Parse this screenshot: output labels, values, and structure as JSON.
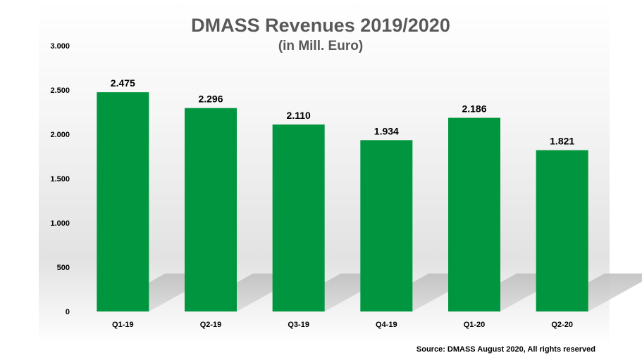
{
  "chart_data": {
    "type": "bar",
    "title": "DMASS Revenues 2019/2020",
    "subtitle": "(in Mill. Euro)",
    "categories": [
      "Q1-19",
      "Q2-19",
      "Q3-19",
      "Q4-19",
      "Q1-20",
      "Q2-20"
    ],
    "values": [
      2475,
      2296,
      2110,
      1934,
      2186,
      1821
    ],
    "value_labels": [
      "2.475",
      "2.296",
      "2.110",
      "1.934",
      "2.186",
      "1.821"
    ],
    "yticks": [
      0,
      500,
      1000,
      1500,
      2000,
      2500,
      3000
    ],
    "ytick_labels": [
      "0",
      "500",
      "1.000",
      "1.500",
      "2.000",
      "2.500",
      "3.000"
    ],
    "ylim": [
      0,
      3000
    ],
    "xlabel": "",
    "ylabel": "",
    "grid": false,
    "legend": "none",
    "bar_color": "#00963f",
    "title_color": "#595959",
    "source": "Source: DMASS August 2020, All rights reserved"
  }
}
